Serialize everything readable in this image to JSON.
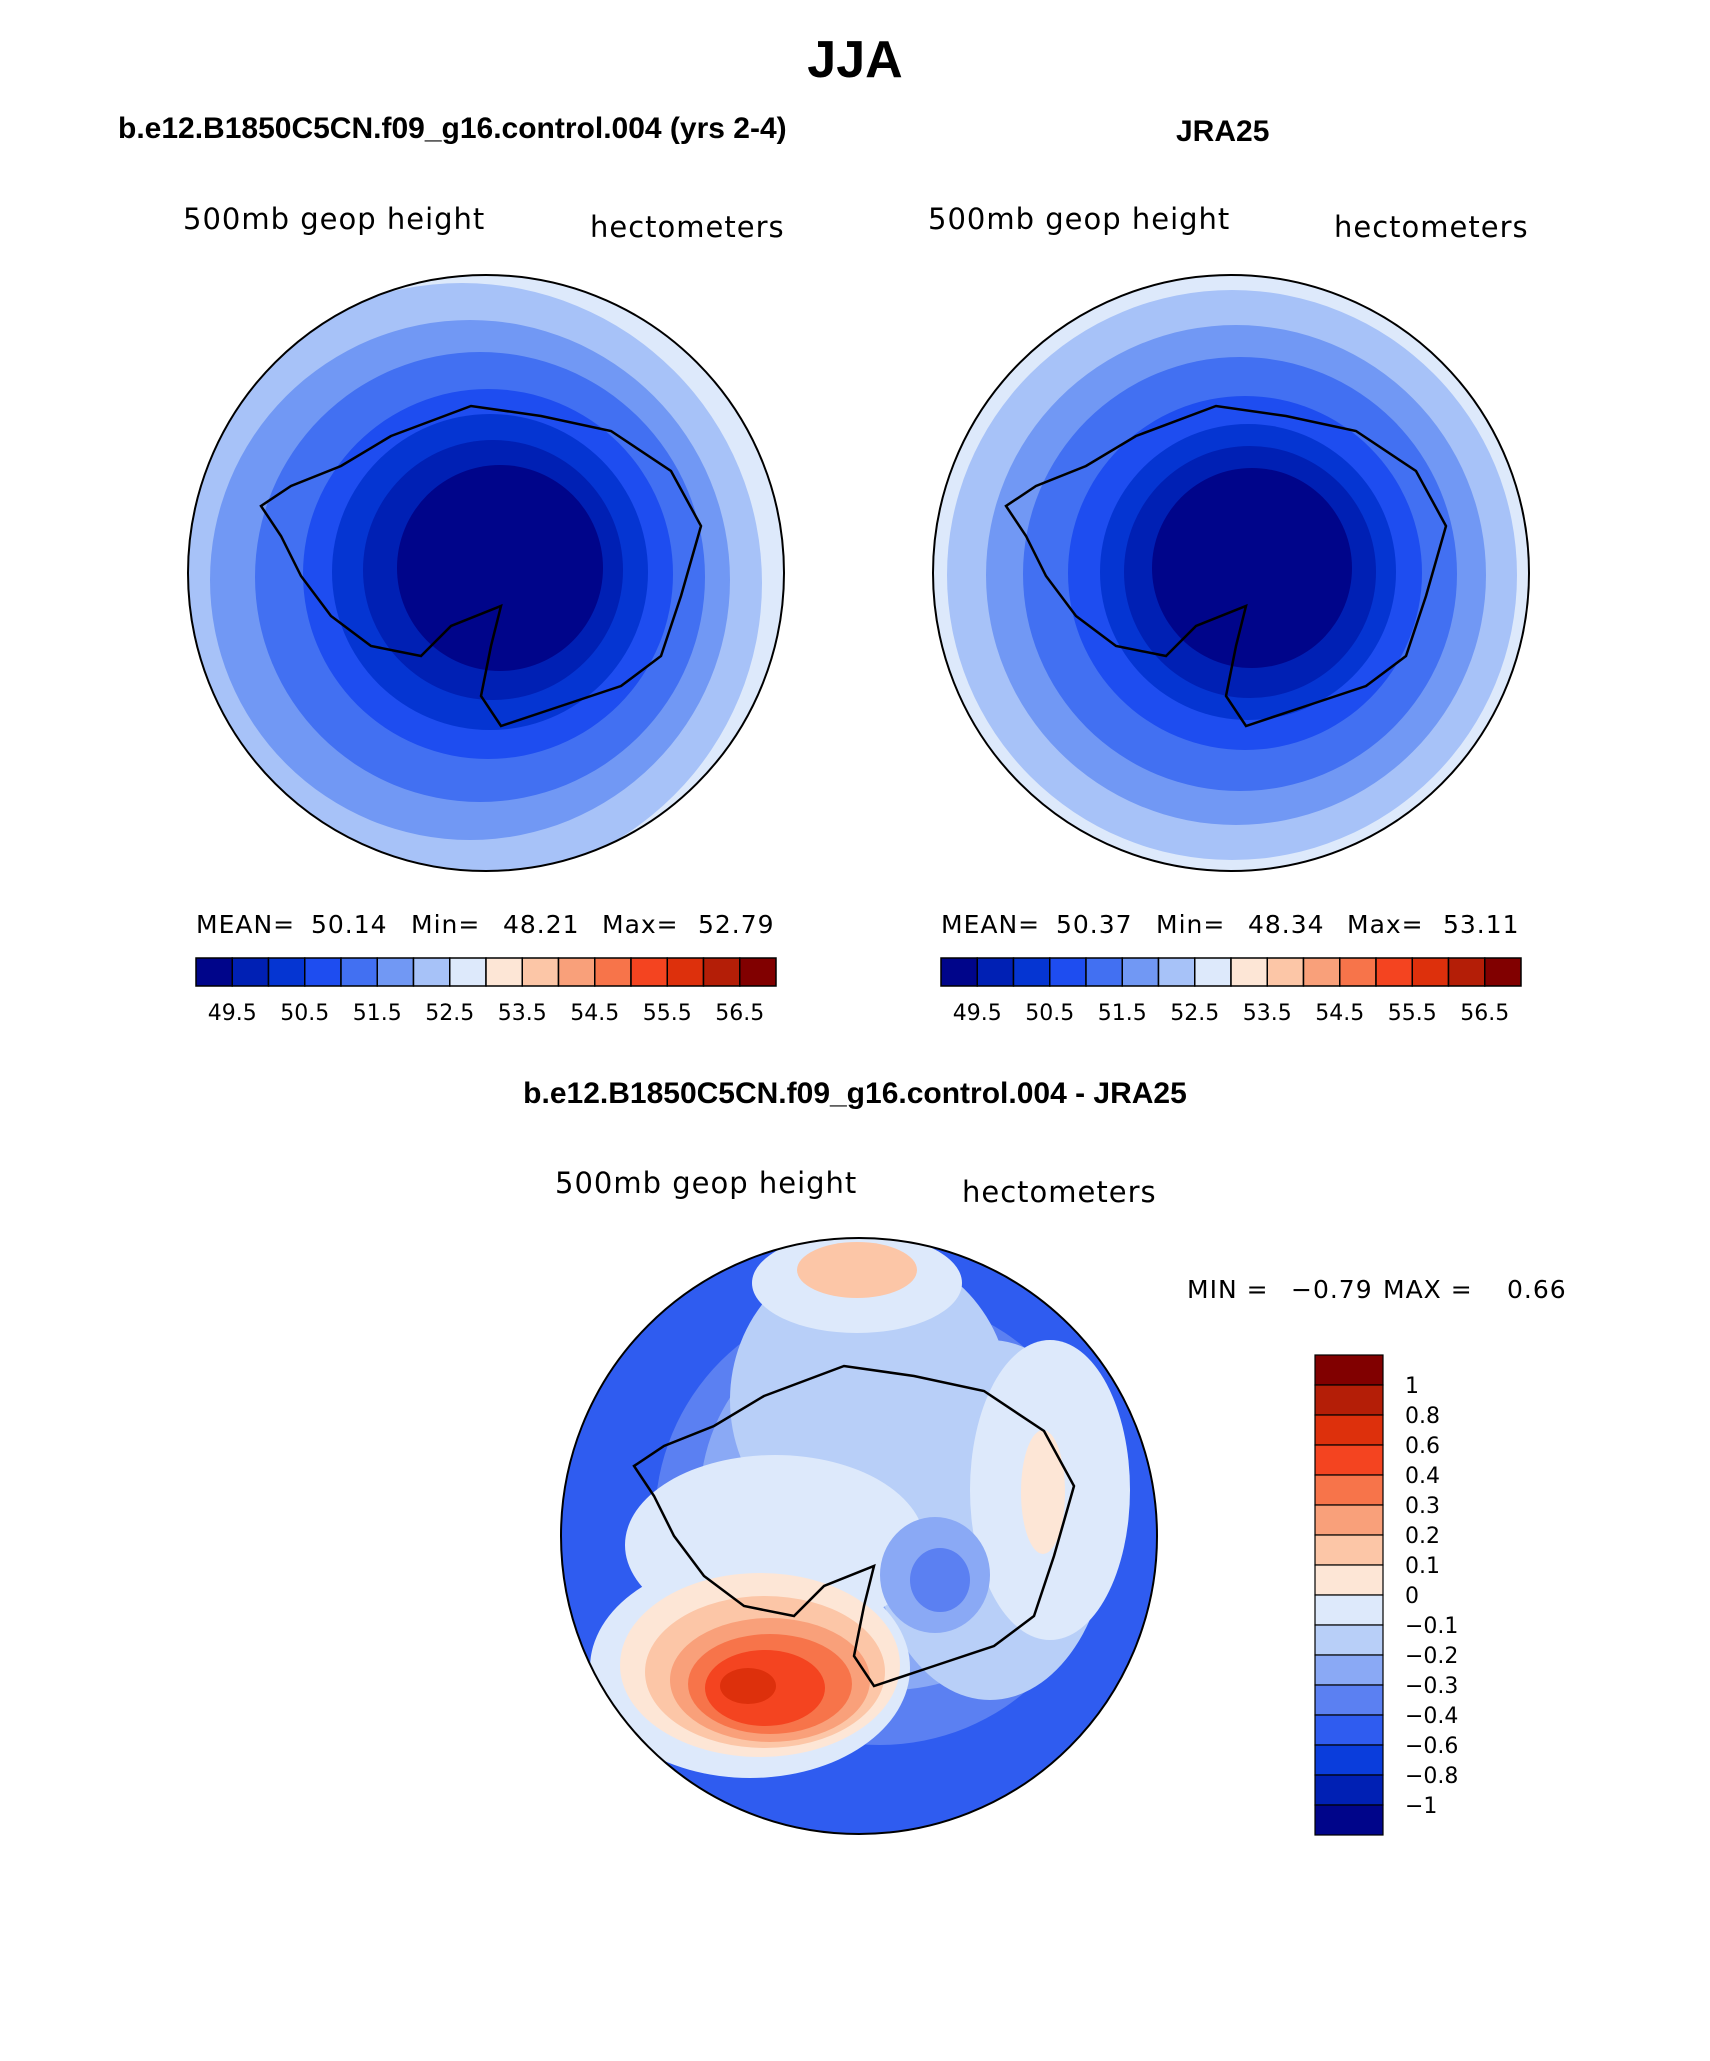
{
  "title": "JJA",
  "panels": [
    {
      "id": "model",
      "title": "b.e12.B1850C5CN.f09_g16.control.004 (yrs 2-4)",
      "variable": "500mb geop height",
      "units": "hectometers",
      "stats": {
        "mean_label": "MEAN=",
        "mean": "50.14",
        "min_label": "Min=",
        "min": "48.21",
        "max_label": "Max=",
        "max": "52.79"
      }
    },
    {
      "id": "obs",
      "title": "JRA25",
      "variable": "500mb geop height",
      "units": "hectometers",
      "stats": {
        "mean_label": "MEAN=",
        "mean": "50.37",
        "min_label": "Min=",
        "min": "48.34",
        "max_label": "Max=",
        "max": "53.11"
      }
    }
  ],
  "colorbar": {
    "colors": [
      "#00058a",
      "#0020b4",
      "#0535d2",
      "#1e4df0",
      "#4270f2",
      "#7198f4",
      "#a7c2f8",
      "#dde9fb",
      "#fde6d6",
      "#fcc6a7",
      "#f9a07a",
      "#f7744a",
      "#f44420",
      "#dd300c",
      "#b41e07",
      "#810000"
    ],
    "tick_labels": [
      "49.5",
      "50.5",
      "51.5",
      "52.5",
      "53.5",
      "54.5",
      "55.5",
      "56.5"
    ]
  },
  "difference": {
    "title": "b.e12.B1850C5CN.f09_g16.control.004 - JRA25",
    "variable": "500mb geop height",
    "units": "hectometers",
    "min_label": "MIN =",
    "min": "−0.79",
    "max_label": "MAX =",
    "max": "0.66",
    "colorbar": {
      "colors": [
        "#810000",
        "#b41e07",
        "#dd300c",
        "#f44420",
        "#f7744a",
        "#f9a07a",
        "#fcc6a7",
        "#fde6d6",
        "#dde9fb",
        "#b8cff8",
        "#8aa9f5",
        "#5b80f2",
        "#2f5cf0",
        "#0a3ddc",
        "#0020b4",
        "#00058a"
      ],
      "tick_labels": [
        "1",
        "0.8",
        "0.6",
        "0.4",
        "0.3",
        "0.2",
        "0.1",
        "0",
        "−0.1",
        "−0.2",
        "−0.3",
        "−0.4",
        "−0.6",
        "−0.8",
        "−1"
      ]
    }
  },
  "chart_data": [
    {
      "type": "heatmap",
      "title": "b.e12.B1850C5CN.f09_g16.control.004 (yrs 2-4)",
      "projection": "south polar stereographic",
      "variable": "500mb geop height",
      "units": "hectometers",
      "contour_levels": [
        49.5,
        50.5,
        51.5,
        52.5,
        53.5,
        54.5,
        55.5,
        56.5
      ],
      "mean": 50.14,
      "min": 48.21,
      "max": 52.79
    },
    {
      "type": "heatmap",
      "title": "JRA25",
      "projection": "south polar stereographic",
      "variable": "500mb geop height",
      "units": "hectometers",
      "contour_levels": [
        49.5,
        50.5,
        51.5,
        52.5,
        53.5,
        54.5,
        55.5,
        56.5
      ],
      "mean": 50.37,
      "min": 48.34,
      "max": 53.11
    },
    {
      "type": "heatmap",
      "title": "b.e12.B1850C5CN.f09_g16.control.004 - JRA25",
      "projection": "south polar stereographic",
      "variable": "500mb geop height",
      "units": "hectometers",
      "contour_levels": [
        -1,
        -0.8,
        -0.6,
        -0.4,
        -0.3,
        -0.2,
        -0.1,
        0,
        0.1,
        0.2,
        0.3,
        0.4,
        0.6,
        0.8,
        1
      ],
      "min": -0.79,
      "max": 0.66
    }
  ]
}
